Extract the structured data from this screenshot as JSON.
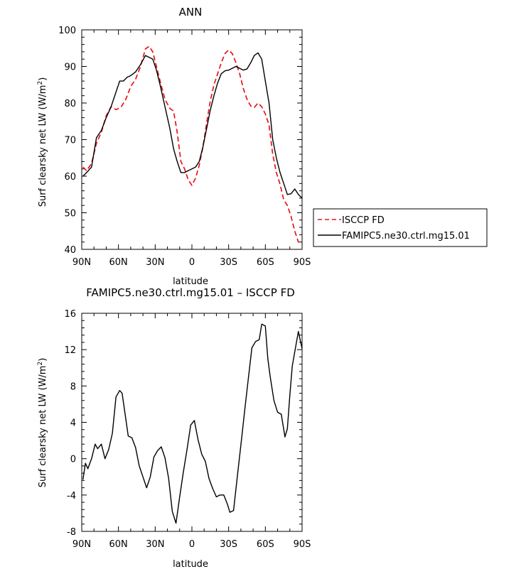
{
  "chart_data": [
    {
      "type": "line",
      "title": "ANN",
      "xlabel": "latitude",
      "ylabel": "Surf clearsky net LW (W/m",
      "ylabel_sup": "2",
      "ylabel_close": ")",
      "xlim": [
        -90,
        90
      ],
      "ylim": [
        40,
        100
      ],
      "xticks": [
        {
          "value": -90,
          "label": "90N"
        },
        {
          "value": -60,
          "label": "60N"
        },
        {
          "value": -30,
          "label": "30N"
        },
        {
          "value": 0,
          "label": "0"
        },
        {
          "value": 30,
          "label": "30S"
        },
        {
          "value": 60,
          "label": "60S"
        },
        {
          "value": 90,
          "label": "90S"
        }
      ],
      "yticks": [
        40,
        50,
        60,
        70,
        80,
        90,
        100
      ],
      "legend_position": "right",
      "series": [
        {
          "name": "ISCCP FD",
          "color": "#e8141a",
          "dash": "dashed",
          "x": [
            -89,
            -86,
            -82,
            -78,
            -74,
            -70,
            -66,
            -62,
            -58,
            -54,
            -50,
            -46,
            -42,
            -38,
            -35,
            -32,
            -29,
            -26,
            -22,
            -18,
            -15,
            -12,
            -9,
            -6,
            -3,
            0,
            3,
            6,
            9,
            12,
            15,
            18,
            21,
            24,
            27,
            30,
            33,
            36,
            39,
            42,
            45,
            48,
            51,
            54,
            57,
            60,
            63,
            66,
            69,
            72,
            75,
            78,
            81,
            84,
            87,
            90
          ],
          "y": [
            62.5,
            61.5,
            63.5,
            69,
            72,
            76.5,
            79,
            78.2,
            78.8,
            81,
            84.5,
            86.5,
            90,
            94.8,
            95.5,
            94,
            90,
            86,
            81,
            78.5,
            77.8,
            72,
            64,
            62,
            59,
            57.5,
            59.5,
            63,
            68,
            74.5,
            80.5,
            85,
            88,
            91,
            93.5,
            94.5,
            93.5,
            91,
            88,
            84,
            81,
            79.2,
            78.8,
            80,
            79,
            77,
            74,
            66,
            61,
            57.8,
            53.5,
            52,
            49,
            45,
            42,
            42
          ]
        },
        {
          "name": "FAMIPC5.ne30.ctrl.mg15.01",
          "color": "#000000",
          "dash": "solid",
          "x": [
            -89,
            -86,
            -82,
            -78,
            -74,
            -70,
            -66,
            -62,
            -59,
            -56,
            -53,
            -50,
            -46,
            -42,
            -38,
            -35,
            -32,
            -29,
            -26,
            -22,
            -18,
            -15,
            -12,
            -9,
            -6,
            -3,
            0,
            3,
            6,
            9,
            12,
            15,
            18,
            21,
            24,
            27,
            30,
            33,
            36,
            39,
            42,
            45,
            48,
            51,
            54,
            57,
            60,
            63,
            66,
            69,
            72,
            75,
            78,
            81,
            84,
            87,
            90
          ],
          "y": [
            60,
            61,
            62.5,
            70.5,
            72.5,
            76,
            79,
            83,
            86,
            86,
            87,
            87.5,
            88.5,
            90.5,
            93,
            92.5,
            92,
            89,
            85,
            79,
            73,
            67.5,
            64,
            61,
            61,
            61.5,
            62,
            62.5,
            64,
            68,
            73,
            78,
            82,
            85.5,
            88,
            88.8,
            89,
            89.5,
            90,
            89.5,
            89,
            89.3,
            91,
            93,
            93.7,
            92,
            86,
            80,
            70,
            65,
            61,
            58,
            55,
            55.2,
            56.5,
            55,
            54
          ]
        }
      ]
    },
    {
      "type": "line",
      "title": "FAMIPC5.ne30.ctrl.mg15.01 – ISCCP FD",
      "xlabel": "latitude",
      "ylabel": "Surf clearsky net LW (W/m",
      "ylabel_sup": "2",
      "ylabel_close": ")",
      "xlim": [
        -90,
        90
      ],
      "ylim": [
        -8,
        16
      ],
      "xticks": [
        {
          "value": -90,
          "label": "90N"
        },
        {
          "value": -60,
          "label": "60N"
        },
        {
          "value": -30,
          "label": "30N"
        },
        {
          "value": 0,
          "label": "0"
        },
        {
          "value": 30,
          "label": "30S"
        },
        {
          "value": 60,
          "label": "60S"
        },
        {
          "value": 90,
          "label": "90S"
        }
      ],
      "yticks": [
        -8,
        -4,
        0,
        4,
        8,
        12,
        16
      ],
      "series": [
        {
          "name": "",
          "color": "#000000",
          "dash": "solid",
          "x": [
            -89,
            -87,
            -85,
            -82,
            -79,
            -77,
            -74,
            -71,
            -68,
            -65,
            -62,
            -59,
            -57,
            -55,
            -52,
            -49,
            -46,
            -43,
            -40,
            -37,
            -34,
            -31,
            -28,
            -25,
            -22,
            -19,
            -16,
            -13,
            -10,
            -7,
            -4,
            -1,
            2,
            5,
            8,
            11,
            14,
            17,
            20,
            23,
            26,
            29,
            31,
            34,
            37,
            40,
            43,
            46,
            49,
            52,
            55,
            57,
            60,
            62,
            64,
            67,
            70,
            73,
            76,
            78,
            80,
            82,
            85,
            87,
            90
          ],
          "y": [
            -2.3,
            -0.5,
            -1.1,
            0,
            1.6,
            1.1,
            1.6,
            0,
            1,
            2.8,
            6.8,
            7.5,
            7.2,
            5.3,
            2.5,
            2.3,
            1.2,
            -0.8,
            -2,
            -3.2,
            -2,
            0.2,
            0.9,
            1.3,
            0.1,
            -2.2,
            -5.8,
            -7.1,
            -4.2,
            -1.5,
            1,
            3.7,
            4.2,
            2.1,
            0.5,
            -0.3,
            -2.2,
            -3.3,
            -4.2,
            -4,
            -4,
            -5,
            -5.9,
            -5.7,
            -2.1,
            1.5,
            5.2,
            8.7,
            12.2,
            12.9,
            13.1,
            14.8,
            14.6,
            11,
            9,
            6.4,
            5.1,
            4.9,
            2.4,
            3.3,
            7,
            10.2,
            12.5,
            14,
            12.1
          ]
        }
      ]
    }
  ]
}
